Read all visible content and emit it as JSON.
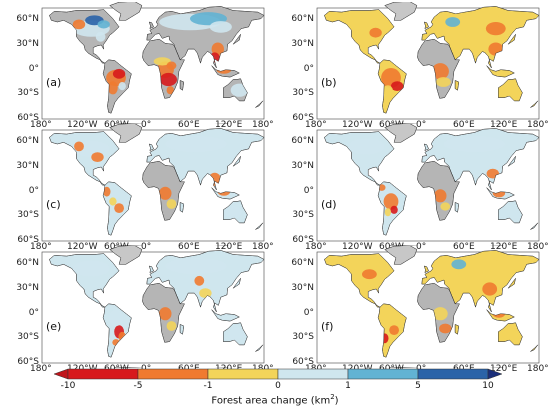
{
  "panels": [
    {
      "label": "(a)",
      "scheme": "a"
    },
    {
      "label": "(b)",
      "scheme": "b"
    },
    {
      "label": "(c)",
      "scheme": "c"
    },
    {
      "label": "(d)",
      "scheme": "d"
    },
    {
      "label": "(e)",
      "scheme": "e"
    },
    {
      "label": "(f)",
      "scheme": "f"
    }
  ],
  "lat_labels": [
    "60°N",
    "30°N",
    "0°",
    "30°S",
    "60°S"
  ],
  "lon_labels": [
    "180°",
    "120°W",
    "60°W",
    "0°",
    "60°E",
    "120°E",
    "180°"
  ],
  "colorbar": {
    "ticks": [
      "-10",
      "-5",
      "-1",
      "0",
      "1",
      "5",
      "10"
    ],
    "colors": [
      "#d7191c",
      "#f07a30",
      "#f3d45a",
      "#cfe6ee",
      "#62b3d3",
      "#2a63a8"
    ],
    "under_color": "#c0151b",
    "over_color": "#1b2f7a",
    "title": "Forest area change (km",
    "title_sup": "2",
    "title_end": ")"
  },
  "colors": {
    "ocean": "#ffffff",
    "land_nodata": "#b5b5b5",
    "greenland": "#c7c7c7",
    "outline": "#333333"
  }
}
